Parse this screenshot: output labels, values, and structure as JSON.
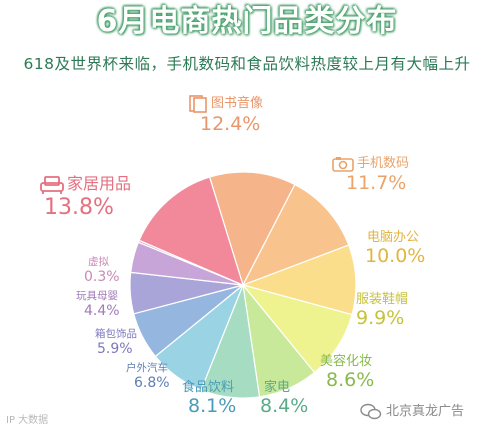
{
  "title": "6月电商热门品类分布",
  "subtitle": "618及世界杯来临，手机数码和食品饮料热度较上月有大幅上升",
  "watermark_left": "IP 大数据",
  "watermark_right": "北京真龙广告",
  "chart_data": {
    "type": "pie",
    "title": "6月电商热门品类分布",
    "slices": [
      {
        "label": "图书音像",
        "value": 12.4,
        "display": "12.4%",
        "color": "#f6b48b",
        "text_color": "#e9966a",
        "icon": "book-icon"
      },
      {
        "label": "手机数码",
        "value": 11.7,
        "display": "11.7%",
        "color": "#f9c38d",
        "text_color": "#eaa36a",
        "icon": "camera-icon"
      },
      {
        "label": "电脑办公",
        "value": 10.0,
        "display": "10.0%",
        "color": "#fbde8c",
        "text_color": "#e2b53f",
        "icon": ""
      },
      {
        "label": "服装鞋帽",
        "value": 9.9,
        "display": "9.9%",
        "color": "#eef28f",
        "text_color": "#c6c23a",
        "icon": ""
      },
      {
        "label": "美容化妆",
        "value": 8.6,
        "display": "8.6%",
        "color": "#c9e99a",
        "text_color": "#89b94d",
        "icon": ""
      },
      {
        "label": "家电",
        "value": 8.4,
        "display": "8.4%",
        "color": "#a5dcc2",
        "text_color": "#5aa98a",
        "icon": ""
      },
      {
        "label": "食品饮料",
        "value": 8.1,
        "display": "8.1%",
        "color": "#9ad3e3",
        "text_color": "#4a9bba",
        "icon": ""
      },
      {
        "label": "户外汽车",
        "value": 6.8,
        "display": "6.8%",
        "color": "#95b6de",
        "text_color": "#5b7fb5",
        "icon": ""
      },
      {
        "label": "箱包饰品",
        "value": 5.9,
        "display": "5.9%",
        "color": "#a9a5d9",
        "text_color": "#7d78bd",
        "icon": ""
      },
      {
        "label": "玩具母婴",
        "value": 4.4,
        "display": "4.4%",
        "color": "#c8a5d8",
        "text_color": "#a27bb8",
        "icon": ""
      },
      {
        "label": "虚拟",
        "value": 0.3,
        "display": "0.3%",
        "color": "#e0a6cf",
        "text_color": "#c98ab5",
        "icon": ""
      },
      {
        "label": "家居用品",
        "value": 13.8,
        "display": "13.8%",
        "color": "#f2899a",
        "text_color": "#e5707f",
        "icon": "sofa-icon"
      }
    ]
  }
}
